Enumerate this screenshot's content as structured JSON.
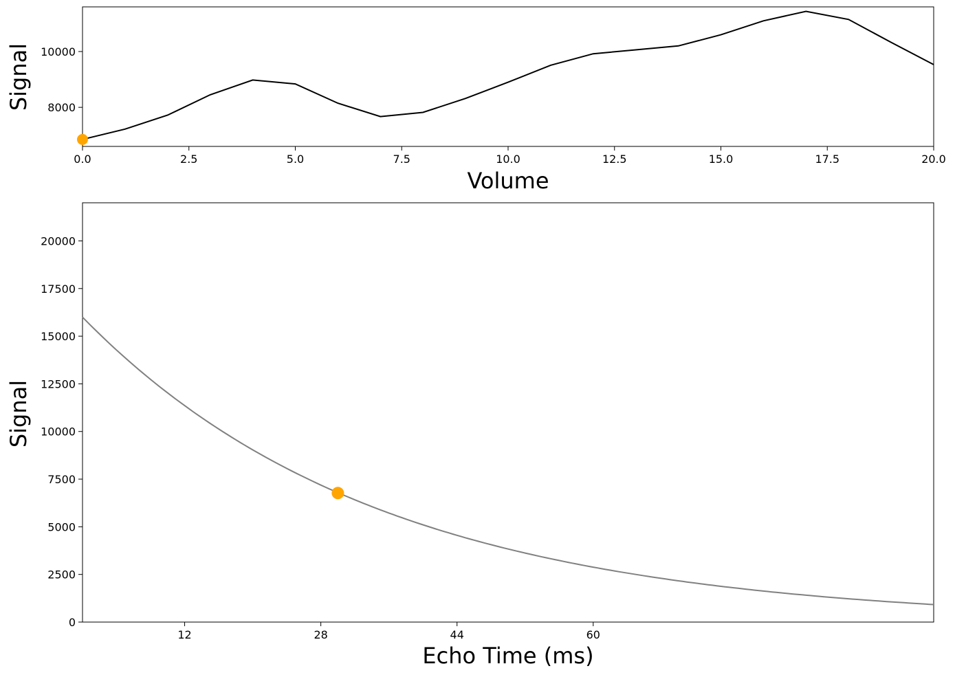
{
  "chart_data": [
    {
      "type": "line",
      "xlabel": "Volume",
      "ylabel": "Signal",
      "xlim": [
        0,
        20
      ],
      "ylim": [
        6600,
        11600
      ],
      "x_ticks": [
        "0.0",
        "2.5",
        "5.0",
        "7.5",
        "10.0",
        "12.5",
        "15.0",
        "17.5",
        "20.0"
      ],
      "y_ticks": [
        "8000",
        "10000"
      ],
      "line_color": "#000000",
      "marker_color": "#FFA500",
      "x": [
        0,
        1,
        2,
        3,
        4,
        5,
        6,
        7,
        8,
        9,
        10,
        11,
        12,
        13,
        14,
        15,
        16,
        17,
        18,
        19,
        20
      ],
      "y": [
        6850,
        7220,
        7720,
        8450,
        8980,
        8840,
        8150,
        7670,
        7820,
        8320,
        8900,
        9510,
        9920,
        10060,
        10200,
        10600,
        11100,
        11440,
        11150,
        10330,
        9530
      ],
      "highlight_point": {
        "x": 0,
        "y": 6850
      }
    },
    {
      "type": "line",
      "xlabel": "Echo Time (ms)",
      "ylabel": "Signal",
      "xlim": [
        0,
        100
      ],
      "ylim": [
        0,
        22000
      ],
      "x_ticks": [
        "12",
        "28",
        "44",
        "60"
      ],
      "y_ticks": [
        "0",
        "2500",
        "5000",
        "7500",
        "10000",
        "12500",
        "15000",
        "17500",
        "20000"
      ],
      "line_color": "#808080",
      "marker_color": "#FFA500",
      "curve": {
        "S0": 16000,
        "T2": 35
      },
      "highlight_point": {
        "x": 30,
        "y": 6770
      }
    }
  ]
}
